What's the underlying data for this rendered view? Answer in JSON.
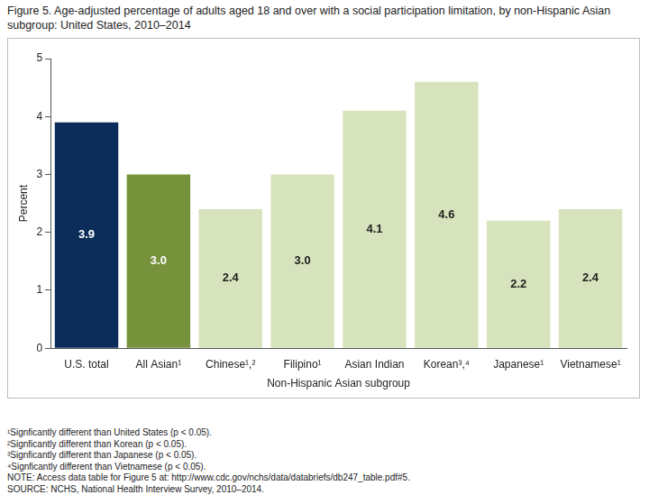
{
  "chart_data": {
    "type": "bar",
    "title": "Figure 5. Age-adjusted percentage of adults aged 18 and over with a social participation limitation, by non-Hispanic Asian subgroup: United States, 2010–2014",
    "categories": [
      "U.S. total",
      "All Asian¹",
      "Chinese¹,²",
      "Filipino¹",
      "Asian Indian",
      "Korean³,⁴",
      "Japanese¹",
      "Vietnamese¹"
    ],
    "values": [
      3.9,
      3.0,
      2.4,
      3.0,
      4.1,
      4.6,
      2.2,
      2.4
    ],
    "value_labels": [
      "3.9",
      "3.0",
      "2.4",
      "3.0",
      "4.1",
      "4.6",
      "2.2",
      "2.4"
    ],
    "colors": [
      "#0c2d5a",
      "#76933c",
      "#d7e3bc",
      "#d7e3bc",
      "#d7e3bc",
      "#d7e3bc",
      "#d7e3bc",
      "#d7e3bc"
    ],
    "y_label": "Percent",
    "x_label": "Non-Hispanic Asian subgroup",
    "ylim": [
      0,
      5
    ],
    "yticks": [
      0,
      1,
      2,
      3,
      4,
      5
    ],
    "grid": false,
    "data_labels": true,
    "notes": [
      "¹Signficantly different than United States (p < 0.05).",
      "²Signficantly different than Korean (p < 0.05).",
      "³Signficantly different than Japanese (p < 0.05).",
      "⁴Signficantly different than Vietnamese (p < 0.05).",
      "NOTE: Access data table for Figure 5 at: http://www.cdc.gov/nchs/data/databriefs/db247_table.pdf#5.",
      "SOURCE: NCHS, National Health Interview Survey, 2010–2014."
    ]
  }
}
